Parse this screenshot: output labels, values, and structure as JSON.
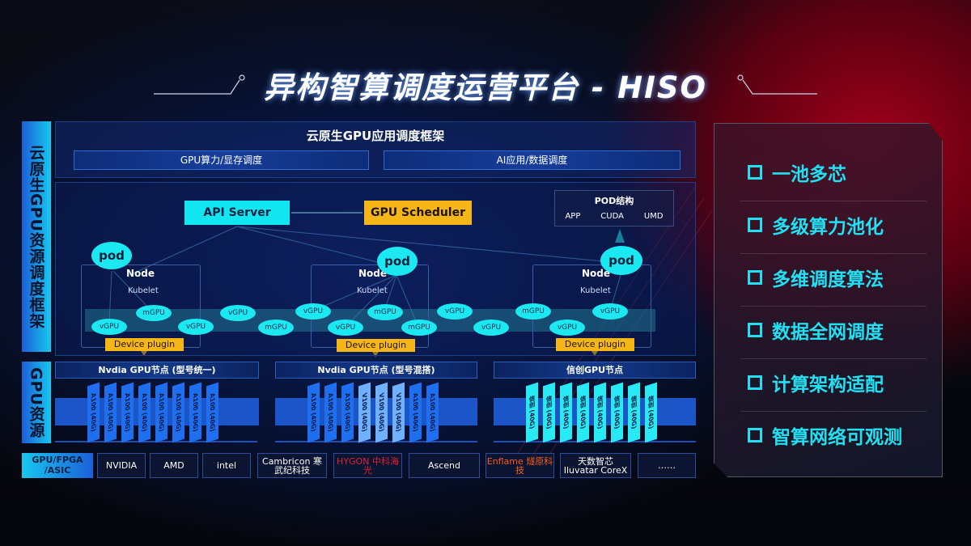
{
  "title": "异构智算调度运营平台 - HISO",
  "left_labels": {
    "framework": "云原生GPU资源调度框架",
    "resources": "GPU资源"
  },
  "top_panel": {
    "title": "云原生GPU应用调度框架",
    "box1": "GPU算力/显存调度",
    "box2": "AI应用/数据调度"
  },
  "diagram": {
    "api_server": "API Server",
    "gpu_scheduler": "GPU Scheduler",
    "pod_structure": {
      "title": "POD结构",
      "items": [
        "APP",
        "CUDA",
        "UMD"
      ]
    },
    "pod": "pod",
    "node": "Node",
    "kubelet": "Kubelet",
    "device_plugin": "Device plugin",
    "vgpu": "vGPU",
    "mgpu": "mGPU"
  },
  "gpu_nodes": [
    {
      "title": "Nvdia GPU节点 (型号统一)",
      "cards": [
        "A100 (40G)",
        "A100 (40G)",
        "A100 (40G)",
        "A100 (40G)",
        "A100 (40G)",
        "A100 (40G)",
        "A100 (40G)",
        "A100 (40G)"
      ]
    },
    {
      "title": "Nvdia GPU节点 (型号混搭)",
      "cards": [
        "A100 (40G)",
        "A100 (40G)",
        "A100 (40G)",
        "V100 (40G)",
        "V100 (40G)",
        "V100 (40G)",
        "A100 (40G)",
        "A100 (40G)"
      ]
    },
    {
      "title": "信创GPU节点",
      "cards": [
        "信创 (40G)",
        "信创 (40G)",
        "信创 (40G)",
        "信创 (40G)",
        "信创 (40G)",
        "信创 (40G)",
        "信创 (40G)",
        "信创 (40G)"
      ]
    }
  ],
  "vendors": {
    "label": "GPU/FPGA /ASIC",
    "logos": [
      "NVIDIA",
      "AMD",
      "intel",
      "Cambricon 寒武纪科技",
      "HYGON 中科海光",
      "Ascend",
      "Enflame 燧原科技",
      "天数智芯 Iluvatar CoreX",
      "……"
    ]
  },
  "features": [
    "一池多芯",
    "多级算力池化",
    "多维调度算法",
    "数据全网调度",
    "计算架构适配",
    "智算网络可观测"
  ],
  "colors": {
    "cyan": "#12e6f0",
    "yellow": "#f7b617",
    "blue": "#1c55c8",
    "red": "#a1001a"
  }
}
